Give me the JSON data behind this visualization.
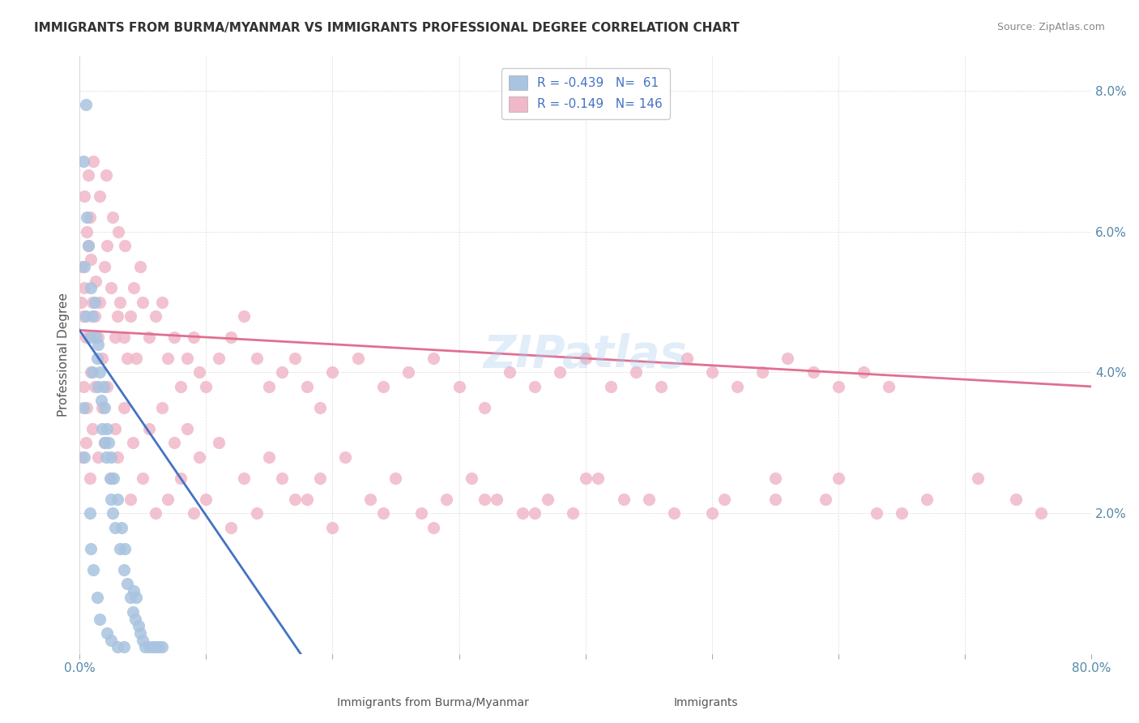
{
  "title": "IMMIGRANTS FROM BURMA/MYANMAR VS IMMIGRANTS PROFESSIONAL DEGREE CORRELATION CHART",
  "source": "Source: ZipAtlas.com",
  "xlabel_label": "Immigrants from Burma/Myanmar",
  "ylabel_label": "Professional Degree",
  "legend_blue_label": "Immigrants from Burma/Myanmar",
  "legend_pink_label": "Immigrants",
  "r_blue": -0.439,
  "n_blue": 61,
  "r_pink": -0.149,
  "n_pink": 146,
  "xlim": [
    0.0,
    0.8
  ],
  "ylim": [
    0.0,
    0.085
  ],
  "xtick_vals": [
    0.0,
    0.1,
    0.2,
    0.3,
    0.4,
    0.5,
    0.6,
    0.7,
    0.8
  ],
  "xtick_labels": [
    "0.0%",
    "",
    "",
    "",
    "",
    "",
    "",
    "",
    "80.0%"
  ],
  "ytick_vals": [
    0.0,
    0.02,
    0.04,
    0.06,
    0.08
  ],
  "ytick_labels": [
    "",
    "2.0%",
    "4.0%",
    "6.0%",
    "8.0%"
  ],
  "blue_color": "#a8c4e0",
  "pink_color": "#f0b8c8",
  "blue_line_color": "#4472c4",
  "pink_line_color": "#e07090",
  "title_color": "#333333",
  "axis_label_color": "#5588aa",
  "watermark": "ZIPatlas",
  "blue_scatter_x": [
    0.005,
    0.003,
    0.004,
    0.005,
    0.006,
    0.007,
    0.008,
    0.009,
    0.01,
    0.01,
    0.012,
    0.013,
    0.014,
    0.015,
    0.015,
    0.016,
    0.017,
    0.018,
    0.019,
    0.02,
    0.02,
    0.021,
    0.022,
    0.023,
    0.024,
    0.025,
    0.025,
    0.026,
    0.027,
    0.028,
    0.03,
    0.032,
    0.033,
    0.035,
    0.036,
    0.038,
    0.04,
    0.042,
    0.043,
    0.044,
    0.045,
    0.047,
    0.048,
    0.05,
    0.052,
    0.055,
    0.058,
    0.06,
    0.063,
    0.065,
    0.003,
    0.004,
    0.008,
    0.009,
    0.011,
    0.014,
    0.016,
    0.022,
    0.025,
    0.03,
    0.035
  ],
  "blue_scatter_y": [
    0.078,
    0.07,
    0.055,
    0.048,
    0.062,
    0.058,
    0.045,
    0.052,
    0.04,
    0.048,
    0.05,
    0.045,
    0.042,
    0.038,
    0.044,
    0.04,
    0.036,
    0.032,
    0.038,
    0.03,
    0.035,
    0.028,
    0.032,
    0.03,
    0.025,
    0.022,
    0.028,
    0.02,
    0.025,
    0.018,
    0.022,
    0.015,
    0.018,
    0.012,
    0.015,
    0.01,
    0.008,
    0.006,
    0.009,
    0.005,
    0.008,
    0.004,
    0.003,
    0.002,
    0.001,
    0.001,
    0.001,
    0.001,
    0.001,
    0.001,
    0.035,
    0.028,
    0.02,
    0.015,
    0.012,
    0.008,
    0.005,
    0.003,
    0.002,
    0.001,
    0.001
  ],
  "pink_scatter_x": [
    0.001,
    0.002,
    0.003,
    0.004,
    0.005,
    0.006,
    0.007,
    0.008,
    0.009,
    0.01,
    0.012,
    0.013,
    0.015,
    0.016,
    0.018,
    0.02,
    0.022,
    0.025,
    0.028,
    0.03,
    0.032,
    0.035,
    0.038,
    0.04,
    0.043,
    0.045,
    0.048,
    0.05,
    0.055,
    0.06,
    0.065,
    0.07,
    0.075,
    0.08,
    0.085,
    0.09,
    0.095,
    0.1,
    0.11,
    0.12,
    0.13,
    0.14,
    0.15,
    0.16,
    0.17,
    0.18,
    0.19,
    0.2,
    0.22,
    0.24,
    0.26,
    0.28,
    0.3,
    0.32,
    0.34,
    0.36,
    0.38,
    0.4,
    0.42,
    0.44,
    0.46,
    0.48,
    0.5,
    0.52,
    0.54,
    0.56,
    0.58,
    0.6,
    0.62,
    0.64,
    0.002,
    0.005,
    0.008,
    0.01,
    0.015,
    0.02,
    0.025,
    0.03,
    0.04,
    0.05,
    0.06,
    0.07,
    0.08,
    0.09,
    0.1,
    0.12,
    0.14,
    0.16,
    0.18,
    0.2,
    0.24,
    0.28,
    0.32,
    0.36,
    0.4,
    0.45,
    0.5,
    0.55,
    0.6,
    0.65,
    0.003,
    0.006,
    0.009,
    0.012,
    0.018,
    0.022,
    0.028,
    0.035,
    0.042,
    0.055,
    0.065,
    0.075,
    0.085,
    0.095,
    0.11,
    0.13,
    0.15,
    0.17,
    0.19,
    0.21,
    0.23,
    0.25,
    0.27,
    0.29,
    0.31,
    0.33,
    0.35,
    0.37,
    0.39,
    0.41,
    0.43,
    0.47,
    0.51,
    0.55,
    0.59,
    0.63,
    0.67,
    0.71,
    0.74,
    0.76,
    0.004,
    0.007,
    0.011,
    0.016,
    0.021,
    0.026,
    0.031,
    0.036
  ],
  "pink_scatter_y": [
    0.05,
    0.055,
    0.048,
    0.052,
    0.045,
    0.06,
    0.058,
    0.062,
    0.056,
    0.05,
    0.048,
    0.053,
    0.045,
    0.05,
    0.042,
    0.055,
    0.058,
    0.052,
    0.045,
    0.048,
    0.05,
    0.045,
    0.042,
    0.048,
    0.052,
    0.042,
    0.055,
    0.05,
    0.045,
    0.048,
    0.05,
    0.042,
    0.045,
    0.038,
    0.042,
    0.045,
    0.04,
    0.038,
    0.042,
    0.045,
    0.048,
    0.042,
    0.038,
    0.04,
    0.042,
    0.038,
    0.035,
    0.04,
    0.042,
    0.038,
    0.04,
    0.042,
    0.038,
    0.035,
    0.04,
    0.038,
    0.04,
    0.042,
    0.038,
    0.04,
    0.038,
    0.042,
    0.04,
    0.038,
    0.04,
    0.042,
    0.04,
    0.038,
    0.04,
    0.038,
    0.028,
    0.03,
    0.025,
    0.032,
    0.028,
    0.03,
    0.025,
    0.028,
    0.022,
    0.025,
    0.02,
    0.022,
    0.025,
    0.02,
    0.022,
    0.018,
    0.02,
    0.025,
    0.022,
    0.018,
    0.02,
    0.018,
    0.022,
    0.02,
    0.025,
    0.022,
    0.02,
    0.022,
    0.025,
    0.02,
    0.038,
    0.035,
    0.04,
    0.038,
    0.035,
    0.038,
    0.032,
    0.035,
    0.03,
    0.032,
    0.035,
    0.03,
    0.032,
    0.028,
    0.03,
    0.025,
    0.028,
    0.022,
    0.025,
    0.028,
    0.022,
    0.025,
    0.02,
    0.022,
    0.025,
    0.022,
    0.02,
    0.022,
    0.02,
    0.025,
    0.022,
    0.02,
    0.022,
    0.025,
    0.022,
    0.02,
    0.022,
    0.025,
    0.022,
    0.02,
    0.065,
    0.068,
    0.07,
    0.065,
    0.068,
    0.062,
    0.06,
    0.058
  ]
}
